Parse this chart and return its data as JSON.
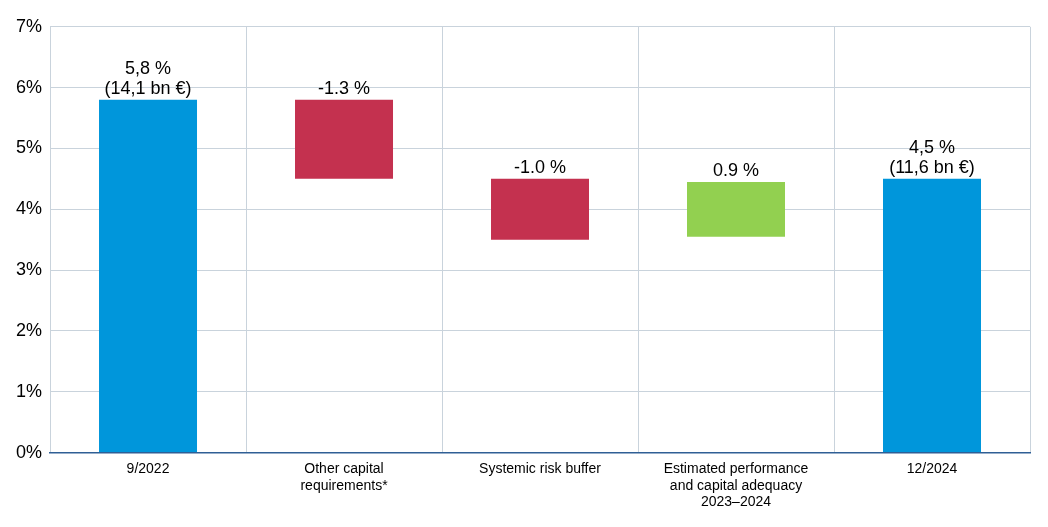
{
  "chart_data": {
    "type": "bar",
    "categories": [
      "9/2022",
      "Other capital requirements*",
      "Systemic risk buffer",
      "Estimated performance and capital adequacy 2023–2024",
      "12/2024"
    ],
    "values": [
      5.8,
      -1.3,
      -1.0,
      0.9,
      4.5
    ],
    "base": [
      0,
      5.8,
      4.5,
      3.55,
      0
    ],
    "colors": [
      "#0096db",
      "#c4314f",
      "#c4314f",
      "#92d050",
      "#0096db"
    ],
    "value_labels": [
      "5,8 %\n(14,1 bn €)",
      "-1.3 %",
      "-1.0 %",
      "0.9 %",
      "4,5 %\n(11,6 bn €)"
    ],
    "ylim": [
      0,
      7
    ],
    "yticks": [
      {
        "value": 0,
        "label": "0%"
      },
      {
        "value": 1,
        "label": "1%"
      },
      {
        "value": 2,
        "label": "2%"
      },
      {
        "value": 3,
        "label": "3%"
      },
      {
        "value": 4,
        "label": "4%"
      },
      {
        "value": 5,
        "label": "5%"
      },
      {
        "value": 6,
        "label": "6%"
      },
      {
        "value": 7,
        "label": "7%"
      }
    ],
    "grid": true,
    "legend": false
  }
}
